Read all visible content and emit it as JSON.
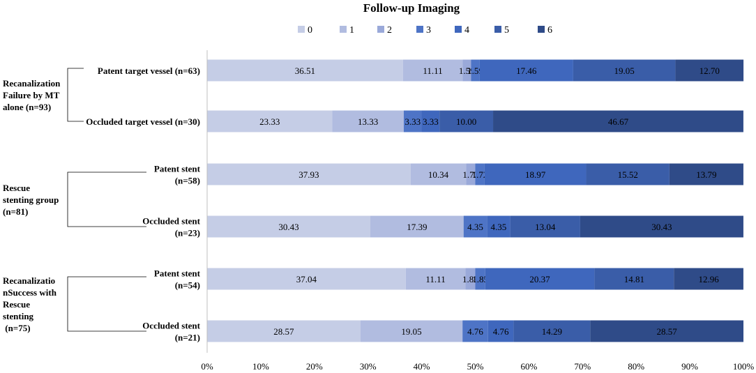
{
  "chart_data": {
    "type": "bar",
    "orientation": "horizontal",
    "stacked": true,
    "percent": true,
    "title": "Follow-up Imaging",
    "legend_position": "top",
    "series_names": [
      "0",
      "1",
      "2",
      "3",
      "4",
      "5",
      "6"
    ],
    "colors": [
      "#c5cde6",
      "#b1bce0",
      "#9aa9d9",
      "#4e74c6",
      "#3f67bd",
      "#3a5da8",
      "#2f4b88"
    ],
    "xlim": [
      0,
      100
    ],
    "x_ticks": [
      "0%",
      "10%",
      "20%",
      "30%",
      "40%",
      "50%",
      "60%",
      "70%",
      "80%",
      "90%",
      "100%"
    ],
    "rows": [
      {
        "label": [
          "Patent target vessel   (n=63)"
        ],
        "values": [
          36.51,
          11.11,
          1.59,
          1.59,
          17.46,
          19.05,
          12.7
        ],
        "labels": [
          "36.51",
          "11.11",
          "1.59",
          "1.59",
          "17.46",
          "19.05",
          "12.70"
        ]
      },
      {
        "label": [
          "Occluded target vessel  (n=30)"
        ],
        "values": [
          23.33,
          13.33,
          0,
          3.33,
          3.33,
          10.0,
          46.67
        ],
        "labels": [
          "23.33",
          "13.33",
          "",
          "3.33",
          "3.33",
          "10.00",
          "46.67"
        ]
      },
      {
        "label": [
          "Patent stent",
          "(n=58)"
        ],
        "values": [
          37.93,
          10.34,
          1.72,
          1.72,
          18.97,
          15.52,
          13.79
        ],
        "labels": [
          "37.93",
          "10.34",
          "1.72",
          "1.72",
          "18.97",
          "15.52",
          "13.79"
        ]
      },
      {
        "label": [
          "Occluded stent",
          "(n=23)"
        ],
        "values": [
          30.43,
          17.39,
          0,
          4.35,
          4.35,
          13.04,
          30.43
        ],
        "labels": [
          "30.43",
          "17.39",
          "",
          "4.35",
          "4.35",
          "13.04",
          "30.43"
        ]
      },
      {
        "label": [
          "Patent stent",
          "(n=54)"
        ],
        "values": [
          37.04,
          11.11,
          1.85,
          1.85,
          20.37,
          14.81,
          12.96
        ],
        "labels": [
          "37.04",
          "11.11",
          "1.85",
          "1.85",
          "20.37",
          "14.81",
          "12.96"
        ]
      },
      {
        "label": [
          "Occluded stent",
          "(n=21)"
        ],
        "values": [
          28.57,
          19.05,
          0,
          4.76,
          4.76,
          14.29,
          28.57
        ],
        "labels": [
          "28.57",
          "19.05",
          "",
          "4.76",
          "4.76",
          "14.29",
          "28.57"
        ]
      }
    ],
    "groups": [
      {
        "label": [
          "Recanalization",
          "Failure by MT",
          "alone (n=93)"
        ],
        "rows": [
          0,
          1
        ]
      },
      {
        "label": [
          "Rescue",
          "stenting group",
          "(n=81)"
        ],
        "rows": [
          2,
          3
        ]
      },
      {
        "label": [
          "Recanalizatio",
          "nSuccess with",
          "Rescue",
          "stenting",
          " (n=75)"
        ],
        "rows": [
          4,
          5
        ]
      }
    ]
  }
}
